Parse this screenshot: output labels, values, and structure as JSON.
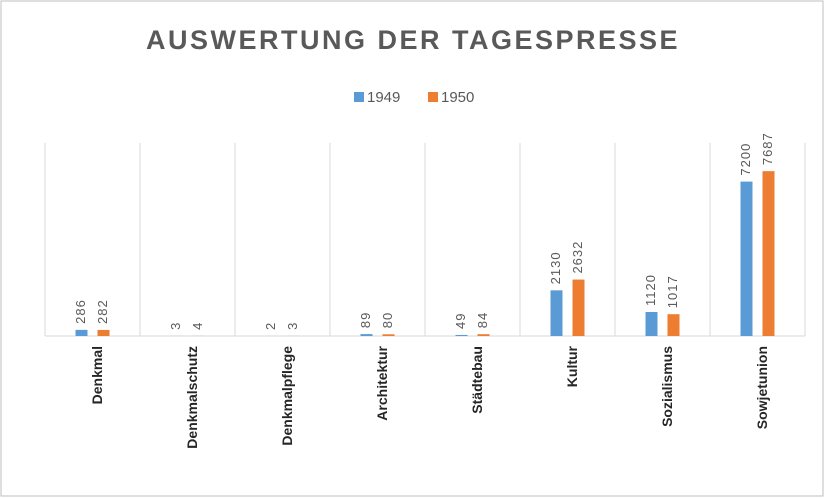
{
  "chart_data": {
    "type": "bar",
    "title": "AUSWERTUNG DER TAGESPRESSE",
    "categories": [
      "Denkmal",
      "Denkmalschutz",
      "Denkmalpflege",
      "Architektur",
      "Städtebau",
      "Kultur",
      "Sozialismus",
      "Sowjetunion"
    ],
    "series": [
      {
        "name": "1949",
        "color": "#5b9bd5",
        "values": [
          286,
          3,
          2,
          89,
          49,
          2130,
          1120,
          7200
        ]
      },
      {
        "name": "1950",
        "color": "#ed7d31",
        "values": [
          282,
          4,
          3,
          80,
          84,
          2632,
          1017,
          7687
        ]
      }
    ],
    "ylim": [
      0,
      9000
    ],
    "legend": "top"
  }
}
